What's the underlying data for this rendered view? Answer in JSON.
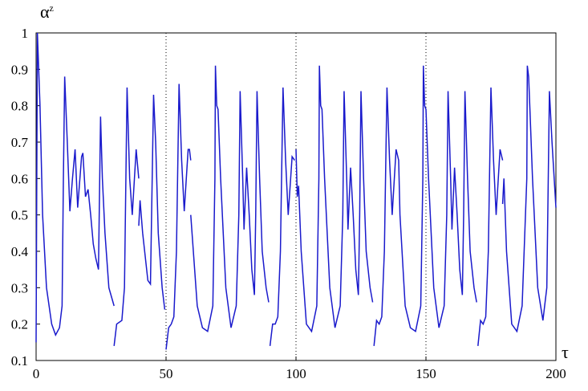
{
  "chart_data": {
    "type": "line",
    "x_label": "τ",
    "y_label": "α",
    "y_label_sup": "z",
    "color": "#1a1acc",
    "xlim": [
      0,
      200
    ],
    "xticks": [
      0,
      50,
      100,
      150,
      200
    ],
    "ylim": [
      0.1,
      1
    ],
    "yticks": [
      0.1,
      0.2,
      0.3,
      0.4,
      0.5,
      0.6,
      0.7,
      0.8,
      0.9,
      1
    ],
    "grid": "x",
    "x": [
      0,
      0.5,
      1.5,
      2.5,
      4,
      6,
      7.5,
      9,
      10,
      10.5,
      11,
      12,
      13,
      14,
      15,
      16,
      17.5,
      18,
      19,
      20,
      21,
      22,
      23,
      24,
      24.8,
      25.5,
      26.5,
      28,
      30,
      30,
      30,
      31,
      33,
      34,
      35,
      36,
      37,
      38.5,
      39.5,
      39.5,
      39.5,
      40,
      41,
      43,
      44,
      45.2,
      46,
      47,
      48.5,
      49.5,
      50,
      50,
      51,
      52,
      53,
      54,
      55,
      56,
      57,
      58.5,
      59,
      59.5,
      59.5,
      59.5,
      60,
      62,
      64,
      66,
      68,
      68.8,
      69,
      69.5,
      70,
      71,
      72,
      73,
      75,
      77,
      78,
      78.5,
      79.5,
      80,
      81,
      82,
      83,
      84,
      84.5,
      85,
      86,
      87,
      88.5,
      89.5,
      90,
      90,
      91,
      92,
      93,
      94,
      95,
      96,
      97,
      98.5,
      99.5,
      99.5,
      100,
      100.5,
      101,
      102,
      104,
      106,
      108,
      108.8,
      109,
      109.5,
      110,
      111,
      112,
      113,
      115,
      117,
      118,
      118.5,
      119.5,
      120,
      121,
      122,
      123,
      124,
      124.5,
      125,
      126,
      127,
      128.5,
      129.5,
      130,
      130,
      131,
      132,
      133,
      134,
      135,
      136,
      137,
      138.5,
      139.5,
      140,
      142,
      144,
      146,
      148,
      148.8,
      149,
      149.5,
      150,
      151,
      152,
      153,
      155,
      157,
      158,
      158.5,
      159.5,
      160,
      161,
      162,
      163,
      164,
      164.5,
      165,
      166,
      167,
      168.5,
      169.5,
      170,
      170,
      171,
      172,
      173,
      174,
      175,
      176,
      177,
      178.5,
      179.5,
      179.5,
      179.5,
      180,
      181,
      183,
      185,
      187,
      188.8,
      189,
      189.5,
      190,
      191,
      192,
      193,
      195,
      196.5,
      197.5,
      198.5,
      200
    ],
    "values": [
      0.15,
      1,
      0.8,
      0.5,
      0.3,
      0.2,
      0.17,
      0.19,
      0.25,
      0.6,
      0.88,
      0.7,
      0.51,
      0.6,
      0.68,
      0.52,
      0.66,
      0.67,
      0.55,
      0.57,
      0.5,
      0.42,
      0.38,
      0.35,
      0.77,
      0.6,
      0.45,
      0.3,
      0.25,
      null,
      0.14,
      0.2,
      0.21,
      0.3,
      0.85,
      0.6,
      0.5,
      0.68,
      0.6,
      null,
      0.47,
      0.54,
      0.45,
      0.32,
      0.31,
      0.83,
      0.7,
      0.45,
      0.3,
      0.24,
      null,
      0.13,
      0.19,
      0.2,
      0.22,
      0.4,
      0.86,
      0.65,
      0.51,
      0.68,
      0.68,
      0.65,
      null,
      0.5,
      0.45,
      0.25,
      0.19,
      0.18,
      0.25,
      0.6,
      0.91,
      0.8,
      0.79,
      0.6,
      0.45,
      0.3,
      0.19,
      0.25,
      0.5,
      0.84,
      0.6,
      0.46,
      0.63,
      0.5,
      0.35,
      0.28,
      0.5,
      0.84,
      0.6,
      0.4,
      0.3,
      0.26,
      null,
      0.14,
      0.2,
      0.2,
      0.22,
      0.4,
      0.85,
      0.65,
      0.5,
      0.66,
      0.65,
      null,
      0.68,
      0.55,
      0.58,
      0.4,
      0.2,
      0.18,
      0.25,
      0.6,
      0.91,
      0.8,
      0.79,
      0.6,
      0.45,
      0.3,
      0.19,
      0.25,
      0.5,
      0.84,
      0.6,
      0.46,
      0.63,
      0.5,
      0.35,
      0.28,
      0.5,
      0.84,
      0.6,
      0.4,
      0.3,
      0.26,
      null,
      0.14,
      0.21,
      0.2,
      0.22,
      0.4,
      0.85,
      0.65,
      0.5,
      0.68,
      0.65,
      0.5,
      0.25,
      0.19,
      0.18,
      0.25,
      0.6,
      0.91,
      0.8,
      0.79,
      0.6,
      0.45,
      0.3,
      0.19,
      0.25,
      0.5,
      0.84,
      0.6,
      0.46,
      0.63,
      0.5,
      0.35,
      0.28,
      0.5,
      0.84,
      0.6,
      0.4,
      0.3,
      0.26,
      null,
      0.14,
      0.21,
      0.2,
      0.22,
      0.4,
      0.85,
      0.65,
      0.5,
      0.68,
      0.65,
      null,
      0.53,
      0.6,
      0.4,
      0.2,
      0.18,
      0.25,
      0.6,
      0.91,
      0.88,
      0.79,
      0.6,
      0.45,
      0.3,
      0.21,
      0.3,
      0.84,
      0.7,
      0.52
    ]
  }
}
